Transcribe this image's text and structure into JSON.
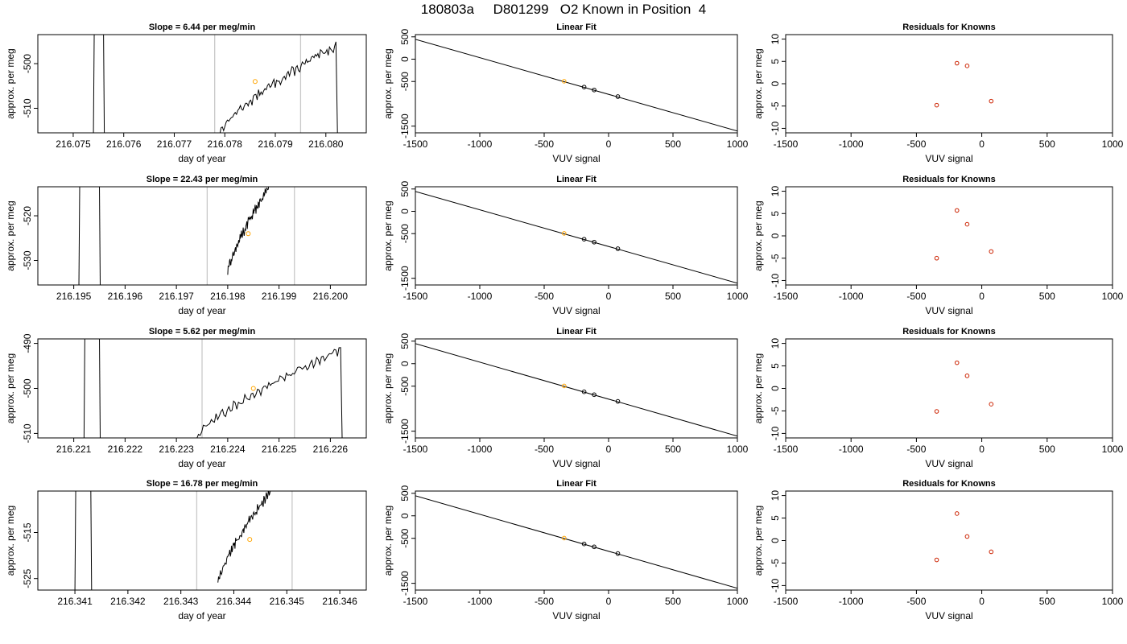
{
  "title": "180803a     D801299   O2 Known in Position  4",
  "colors": {
    "trace": "#000000",
    "marker_orange": "#FFA500",
    "residual_point": "#CC2200",
    "window_line": "#C8C8C8"
  },
  "chart_data": [
    {
      "type": "line",
      "row": 1,
      "title": "Slope =  6.44  per meg/min",
      "xlabel": "day of year",
      "ylabel": "approx. per meg",
      "xlim": [
        216.0743,
        216.0808
      ],
      "ylim": [
        -515.5,
        -493.5
      ],
      "xticks": [
        "216.075",
        "216.076",
        "216.077",
        "216.078",
        "216.079",
        "216.080"
      ],
      "yticks": [
        "-500",
        "-510"
      ],
      "ytick_values": [
        -500,
        -510
      ],
      "window_lines_x": [
        216.0778,
        216.0795
      ],
      "trace": {
        "x_start": 216.0779,
        "x_end": 216.0802,
        "y_start": -515.5,
        "y_end": -496,
        "spike_x": [
          216.0754,
          216.0756
        ]
      },
      "marker": {
        "x": 216.0786,
        "y": -504
      }
    },
    {
      "type": "scatter",
      "row": 1,
      "title": "Linear Fit",
      "xlabel": "VUV signal",
      "ylabel": "approx. per meg",
      "xlim": [
        -1500,
        1000
      ],
      "ylim": [
        -1650,
        550
      ],
      "xticks": [
        "-1500",
        "-1000",
        "-500",
        "0",
        "500",
        "1000"
      ],
      "yticks": [
        "500",
        "0",
        "-500",
        "-1500"
      ],
      "ytick_values": [
        500,
        0,
        -500,
        -1500
      ],
      "fit_line": {
        "x": [
          -1500,
          1000
        ],
        "y": [
          445,
          -1610
        ]
      },
      "points": {
        "x": [
          -345,
          -190,
          -112,
          72
        ],
        "y": [
          -495,
          -625,
          -690,
          -838
        ]
      },
      "orange_x": -345
    },
    {
      "type": "scatter",
      "row": 1,
      "title": "Residuals for Knowns",
      "xlabel": "VUV signal",
      "ylabel": "approx. per meg",
      "xlim": [
        -1500,
        1000
      ],
      "ylim": [
        -11,
        11
      ],
      "xticks": [
        "-1500",
        "-1000",
        "-500",
        "0",
        "500",
        "1000"
      ],
      "yticks": [
        "10",
        "5",
        "0",
        "-5",
        "-10"
      ],
      "ytick_values": [
        10,
        5,
        0,
        -5,
        -10
      ],
      "points": {
        "x": [
          -345,
          -190,
          -112,
          72
        ],
        "y": [
          -4.8,
          4.6,
          4.0,
          -3.9
        ]
      }
    },
    {
      "type": "line",
      "row": 2,
      "title": "Slope =  22.43  per meg/min",
      "xlabel": "day of year",
      "ylabel": "approx. per meg",
      "xlim": [
        216.1943,
        216.2007
      ],
      "ylim": [
        -535.5,
        -513.5
      ],
      "xticks": [
        "216.195",
        "216.196",
        "216.197",
        "216.198",
        "216.199",
        "216.200"
      ],
      "yticks": [
        "-520",
        "-530"
      ],
      "ytick_values": [
        -520,
        -530
      ],
      "window_lines_x": [
        216.1976,
        216.1993
      ],
      "trace": {
        "x_start": 216.198,
        "x_end": 216.1988,
        "y_start": -533,
        "y_end": -513.5,
        "spike_x": [
          216.1951,
          216.1955
        ]
      },
      "marker": {
        "x": 216.1984,
        "y": -524
      }
    },
    {
      "type": "scatter",
      "row": 2,
      "title": "Linear Fit",
      "xlabel": "VUV signal",
      "ylabel": "approx. per meg",
      "xlim": [
        -1500,
        1000
      ],
      "ylim": [
        -1650,
        550
      ],
      "xticks": [
        "-1500",
        "-1000",
        "-500",
        "0",
        "500",
        "1000"
      ],
      "yticks": [
        "500",
        "0",
        "-500",
        "-1500"
      ],
      "ytick_values": [
        500,
        0,
        -500,
        -1500
      ],
      "fit_line": {
        "x": [
          -1500,
          1000
        ],
        "y": [
          445,
          -1610
        ]
      },
      "points": {
        "x": [
          -345,
          -190,
          -112,
          72
        ],
        "y": [
          -495,
          -625,
          -690,
          -838
        ]
      },
      "orange_x": -345
    },
    {
      "type": "scatter",
      "row": 2,
      "title": "Residuals for Knowns",
      "xlabel": "VUV signal",
      "ylabel": "approx. per meg",
      "xlim": [
        -1500,
        1000
      ],
      "ylim": [
        -11,
        11
      ],
      "xticks": [
        "-1500",
        "-1000",
        "-500",
        "0",
        "500",
        "1000"
      ],
      "yticks": [
        "10",
        "5",
        "0",
        "-5",
        "-10"
      ],
      "ytick_values": [
        10,
        5,
        0,
        -5,
        -10
      ],
      "points": {
        "x": [
          -345,
          -190,
          -112,
          72
        ],
        "y": [
          -5.0,
          5.7,
          2.6,
          -3.5
        ]
      }
    },
    {
      "type": "line",
      "row": 3,
      "title": "Slope =  5.62  per meg/min",
      "xlabel": "day of year",
      "ylabel": "approx. per meg",
      "xlim": [
        216.2203,
        216.2267
      ],
      "ylim": [
        -511,
        -489
      ],
      "xticks": [
        "216.221",
        "216.222",
        "216.223",
        "216.224",
        "216.225",
        "216.226"
      ],
      "yticks": [
        "-490",
        "-500",
        "-510"
      ],
      "ytick_values": [
        -490,
        -500,
        -510
      ],
      "window_lines_x": [
        216.2235,
        216.2253
      ],
      "trace": {
        "x_start": 216.2234,
        "x_end": 216.2262,
        "y_start": -511,
        "y_end": -491.5,
        "spike_x": [
          216.2212,
          216.2215
        ]
      },
      "marker": {
        "x": 216.2245,
        "y": -500
      }
    },
    {
      "type": "scatter",
      "row": 3,
      "title": "Linear Fit",
      "xlabel": "VUV signal",
      "ylabel": "approx. per meg",
      "xlim": [
        -1500,
        1000
      ],
      "ylim": [
        -1650,
        550
      ],
      "xticks": [
        "-1500",
        "-1000",
        "-500",
        "0",
        "500",
        "1000"
      ],
      "yticks": [
        "500",
        "0",
        "-500",
        "-1500"
      ],
      "ytick_values": [
        500,
        0,
        -500,
        -1500
      ],
      "fit_line": {
        "x": [
          -1500,
          1000
        ],
        "y": [
          445,
          -1610
        ]
      },
      "points": {
        "x": [
          -345,
          -190,
          -112,
          72
        ],
        "y": [
          -495,
          -625,
          -690,
          -838
        ]
      },
      "orange_x": -345
    },
    {
      "type": "scatter",
      "row": 3,
      "title": "Residuals for Knowns",
      "xlabel": "VUV signal",
      "ylabel": "approx. per meg",
      "xlim": [
        -1500,
        1000
      ],
      "ylim": [
        -11,
        11
      ],
      "xticks": [
        "-1500",
        "-1000",
        "-500",
        "0",
        "500",
        "1000"
      ],
      "yticks": [
        "10",
        "5",
        "0",
        "-5",
        "-10"
      ],
      "ytick_values": [
        10,
        5,
        0,
        -5,
        -10
      ],
      "points": {
        "x": [
          -345,
          -190,
          -112,
          72
        ],
        "y": [
          -5.1,
          5.7,
          2.8,
          -3.5
        ]
      }
    },
    {
      "type": "line",
      "row": 4,
      "title": "Slope =  16.78  per meg/min",
      "xlabel": "day of year",
      "ylabel": "approx. per meg",
      "xlim": [
        216.3403,
        216.3465
      ],
      "ylim": [
        -527.5,
        -506
      ],
      "xticks": [
        "216.341",
        "216.342",
        "216.343",
        "216.344",
        "216.345",
        "216.346"
      ],
      "yticks": [
        "-515",
        "-525"
      ],
      "ytick_values": [
        -515,
        -525
      ],
      "window_lines_x": [
        216.3433,
        216.3451
      ],
      "trace": {
        "x_start": 216.3437,
        "x_end": 216.3447,
        "y_start": -526,
        "y_end": -506,
        "spike_x": [
          216.341,
          216.3413
        ]
      },
      "marker": {
        "x": 216.3443,
        "y": -516.5
      }
    },
    {
      "type": "scatter",
      "row": 4,
      "title": "Linear Fit",
      "xlabel": "VUV signal",
      "ylabel": "approx. per meg",
      "xlim": [
        -1500,
        1000
      ],
      "ylim": [
        -1650,
        550
      ],
      "xticks": [
        "-1500",
        "-1000",
        "-500",
        "0",
        "500",
        "1000"
      ],
      "yticks": [
        "500",
        "0",
        "-500",
        "-1500"
      ],
      "ytick_values": [
        500,
        0,
        -500,
        -1500
      ],
      "fit_line": {
        "x": [
          -1500,
          1000
        ],
        "y": [
          445,
          -1610
        ]
      },
      "points": {
        "x": [
          -345,
          -190,
          -112,
          72
        ],
        "y": [
          -495,
          -625,
          -690,
          -838
        ]
      },
      "orange_x": -345
    },
    {
      "type": "scatter",
      "row": 4,
      "title": "Residuals for Knowns",
      "xlabel": "VUV signal",
      "ylabel": "approx. per meg",
      "xlim": [
        -1500,
        1000
      ],
      "ylim": [
        -11,
        11
      ],
      "xticks": [
        "-1500",
        "-1000",
        "-500",
        "0",
        "500",
        "1000"
      ],
      "yticks": [
        "10",
        "5",
        "0",
        "-5",
        "-10"
      ],
      "ytick_values": [
        10,
        5,
        0,
        -5,
        -10
      ],
      "points": {
        "x": [
          -345,
          -190,
          -112,
          72
        ],
        "y": [
          -4.3,
          6.0,
          0.9,
          -2.5
        ]
      }
    }
  ]
}
